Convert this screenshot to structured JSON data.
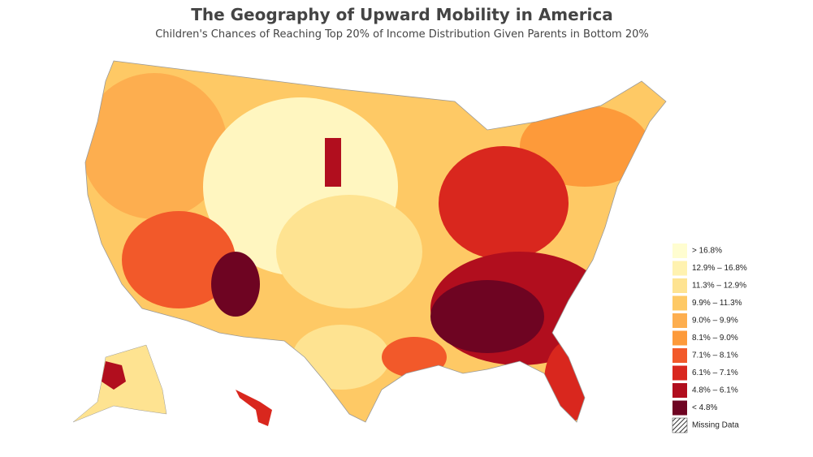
{
  "header": {
    "title": "The Geography of Upward Mobility in America",
    "subtitle": "Children's Chances of Reaching Top 20% of Income Distribution Given Parents in Bottom 20%"
  },
  "legend": {
    "items": [
      {
        "label": "> 16.8%",
        "color": "#fffdd0"
      },
      {
        "label": "12.9% – 16.8%",
        "color": "#fff2b0"
      },
      {
        "label": "11.3% – 12.9%",
        "color": "#fee391"
      },
      {
        "label": "9.9% – 11.3%",
        "color": "#fec965"
      },
      {
        "label": "9.0% – 9.9%",
        "color": "#fdae4f"
      },
      {
        "label": "8.1% – 9.0%",
        "color": "#fd9a3a"
      },
      {
        "label": "7.1% – 8.1%",
        "color": "#f2592a"
      },
      {
        "label": "6.1% – 7.1%",
        "color": "#d9271e"
      },
      {
        "label": "4.8% – 6.1%",
        "color": "#b10e1e"
      },
      {
        "label": "< 4.8%",
        "color": "#6e0422"
      }
    ],
    "missing": "Missing Data"
  }
}
